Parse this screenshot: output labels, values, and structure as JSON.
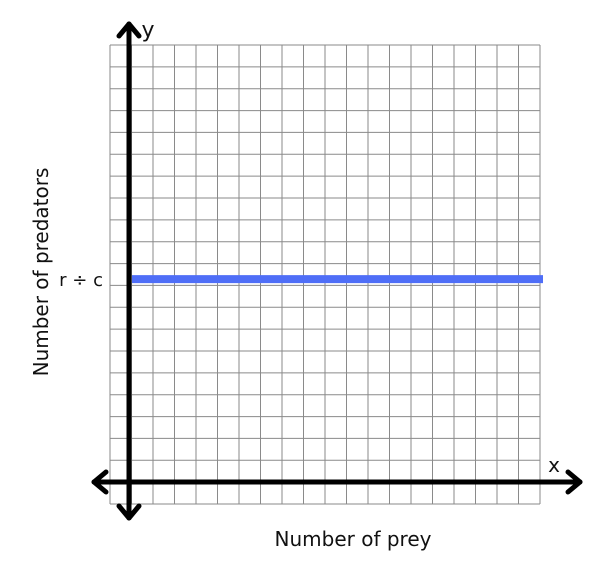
{
  "chart_data": {
    "type": "line",
    "xlabel": "Number of prey",
    "ylabel": "Number of predators",
    "x_axis_letter": "x",
    "y_axis_letter": "y",
    "grid": true,
    "grid_columns": 20,
    "grid_rows": 21,
    "series": [
      {
        "label": "r ÷ c",
        "kind": "horizontal",
        "level_fraction": 0.49,
        "color": "#4f6ef7"
      }
    ]
  },
  "colors": {
    "grid": "#8a8a8a",
    "axis": "#000000",
    "background": "#ffffff"
  }
}
